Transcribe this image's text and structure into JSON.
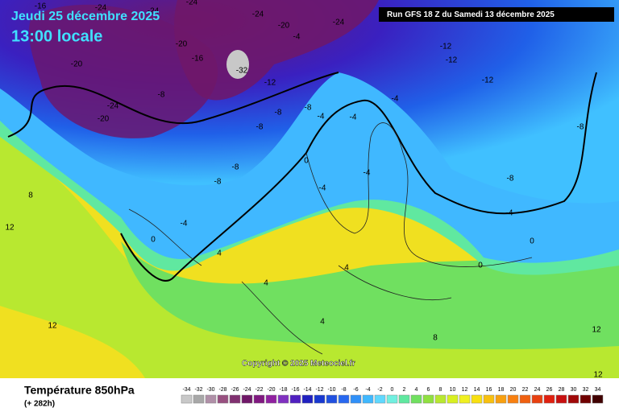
{
  "header": {
    "date": "Jeudi 25 décembre 2025",
    "time": "13:00 locale",
    "run": "Run GFS 18 Z du Samedi 13 décembre 2025"
  },
  "copyright": "Copyright © 2025 Meteociel.fr",
  "footer": {
    "title": "Température 850hPa",
    "lead": "(+ 282h)"
  },
  "scale": {
    "values": [
      -34,
      -32,
      -30,
      -28,
      -26,
      -24,
      -22,
      -20,
      -18,
      -16,
      -14,
      -12,
      -10,
      -8,
      -6,
      -4,
      -2,
      0,
      2,
      4,
      6,
      8,
      10,
      12,
      14,
      16,
      18,
      20,
      22,
      24,
      26,
      28,
      30,
      32,
      34
    ],
    "colors": [
      "#c8c8c8",
      "#a8a8a8",
      "#b090a8",
      "#985080",
      "#803070",
      "#701868",
      "#801880",
      "#9020a0",
      "#8030c0",
      "#5020c0",
      "#2020c0",
      "#1838d0",
      "#2050e0",
      "#2868f0",
      "#3090f8",
      "#40b8ff",
      "#60d8ff",
      "#70f0e0",
      "#60e8a0",
      "#70e060",
      "#90e040",
      "#b8e830",
      "#d8f020",
      "#f0f020",
      "#f8e010",
      "#f8c010",
      "#f8a010",
      "#f88010",
      "#f06010",
      "#e84010",
      "#e02010",
      "#c81010",
      "#a00808",
      "#700000",
      "#400000"
    ]
  },
  "map": {
    "labels": [
      -16,
      -24,
      -24,
      -24,
      -24,
      -20,
      -4,
      -24,
      -20,
      -16,
      -20,
      -24,
      -20,
      -8,
      -32,
      -12,
      -8,
      -8,
      -8,
      -4,
      -12,
      -12,
      -12,
      -4,
      -4,
      -8,
      -8,
      0,
      -4,
      -4,
      -8,
      -8,
      -4,
      0,
      0,
      0,
      -4,
      4,
      4,
      4,
      4,
      8,
      12,
      12,
      8,
      12,
      12
    ]
  }
}
